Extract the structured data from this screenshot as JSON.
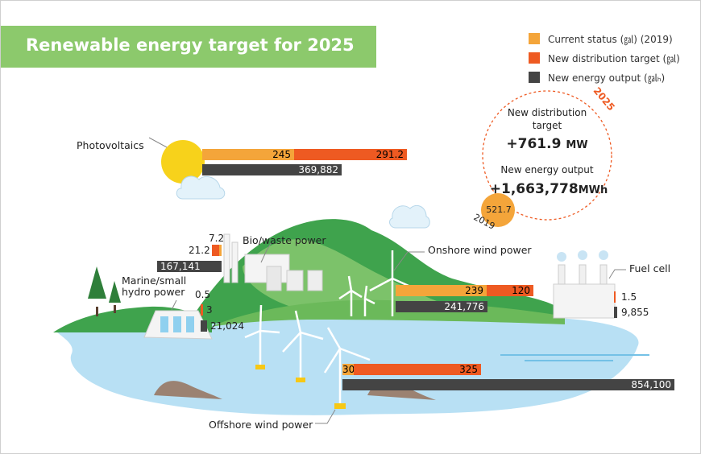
{
  "title": "Renewable energy target for 2025",
  "legend": [
    {
      "label": "Current status (㏿) (2019)",
      "color": "#f4a53a"
    },
    {
      "label": "New distribution target (㏿)",
      "color": "#ee5a22"
    },
    {
      "label": "New energy output (㏿ₕ)",
      "color": "#444444"
    }
  ],
  "summary": {
    "year": "2025",
    "base_year": "2019",
    "base_value": "521.7",
    "dist_label_1": "New distribution",
    "dist_label_2": "target",
    "dist_value": "+761.9",
    "dist_unit": "MW",
    "output_label": "New energy output",
    "output_value": "+1,663,778",
    "output_unit": "MWh"
  },
  "chart_data": {
    "type": "bar",
    "title": "Renewable energy target for 2025",
    "series": [
      {
        "name": "Current status (MW) (2019)",
        "color": "#f4a53a"
      },
      {
        "name": "New distribution target (MW)",
        "color": "#ee5a22"
      },
      {
        "name": "New energy output (MWh)",
        "color": "#444444"
      }
    ],
    "categories": [
      {
        "name": "Photovoltaics",
        "current": 245,
        "current_label": "245",
        "target": 291.2,
        "target_label": "291.2",
        "output": 369882,
        "output_label": "369,882"
      },
      {
        "name": "Bio/waste power",
        "current": 7.2,
        "current_label": "7.2",
        "target": 21.2,
        "target_label": "21.2",
        "output": 167141,
        "output_label": "167,141"
      },
      {
        "name": "Marine/small hydro power",
        "current": 0.5,
        "current_label": "0.5",
        "target": 3,
        "target_label": "3",
        "output": 21024,
        "output_label": "21,024"
      },
      {
        "name": "Onshore wind power",
        "current": 239,
        "current_label": "239",
        "target": 120,
        "target_label": "120",
        "output": 241776,
        "output_label": "241,776"
      },
      {
        "name": "Fuel cell",
        "current": 0,
        "current_label": "",
        "target": 1.5,
        "target_label": "1.5",
        "output": 9855,
        "output_label": "9,855"
      },
      {
        "name": "Offshore wind power",
        "current": 30,
        "current_label": "30",
        "target": 325,
        "target_label": "325",
        "output": 854100,
        "output_label": "854,100"
      }
    ],
    "labels": {
      "photovoltaics": "Photovoltaics",
      "bio": "Bio/waste power",
      "marine_1": "Marine/small",
      "marine_2": "hydro power",
      "onshore": "Onshore wind power",
      "fuel": "Fuel cell",
      "offshore": "Offshore wind power"
    }
  }
}
